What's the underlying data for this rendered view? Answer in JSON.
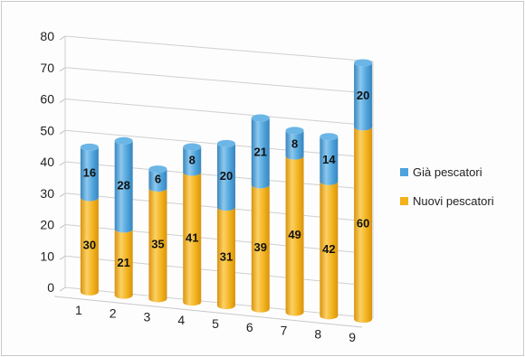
{
  "chart_data": {
    "type": "bar",
    "stacked": true,
    "style": "3d-cylinder",
    "title": "",
    "xlabel": "",
    "ylabel": "",
    "ylim": [
      0,
      80
    ],
    "yticks": [
      0,
      10,
      20,
      30,
      40,
      50,
      60,
      70,
      80
    ],
    "grid": true,
    "legend": "right",
    "categories": [
      "1",
      "2",
      "3",
      "4",
      "5",
      "6",
      "7",
      "8",
      "9"
    ],
    "series": [
      {
        "name": "Nuovi pescatori",
        "color": "#f2b21c",
        "values": [
          30,
          21,
          35,
          41,
          31,
          39,
          49,
          42,
          60
        ]
      },
      {
        "name": "Già pescatori",
        "color": "#4fa3db",
        "values": [
          16,
          28,
          6,
          8,
          20,
          21,
          8,
          14,
          20
        ]
      }
    ]
  }
}
